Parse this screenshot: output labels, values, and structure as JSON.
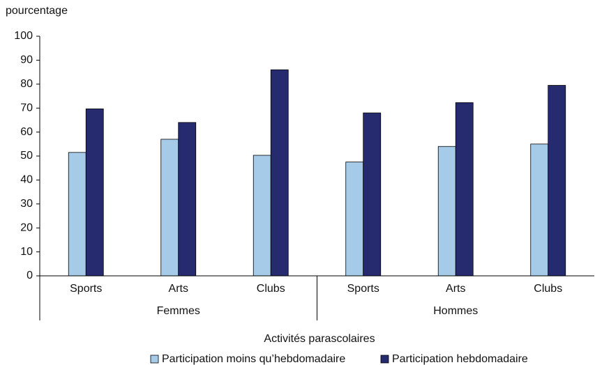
{
  "chart_data": {
    "type": "bar",
    "y_label": "pourcentage",
    "x_label": "Activités parascolaires",
    "categories": [
      "Sports",
      "Arts",
      "Clubs",
      "Sports",
      "Arts",
      "Clubs"
    ],
    "groups": [
      "Femmes",
      "Hommes"
    ],
    "series": [
      {
        "name": "Participation moins qu’hebdomadaire",
        "color": "#a6cbe8",
        "values": [
          51.5,
          57,
          50.3,
          47.5,
          54,
          55
        ]
      },
      {
        "name": "Participation hebdomadaire",
        "color": "#262a6e",
        "values": [
          69.7,
          64,
          86,
          68,
          72.3,
          79.5
        ]
      }
    ],
    "ylim": [
      0,
      100
    ],
    "yticks": [
      0,
      10,
      20,
      30,
      40,
      50,
      60,
      70,
      80,
      90,
      100
    ],
    "grid": false,
    "legend": "bottom"
  }
}
